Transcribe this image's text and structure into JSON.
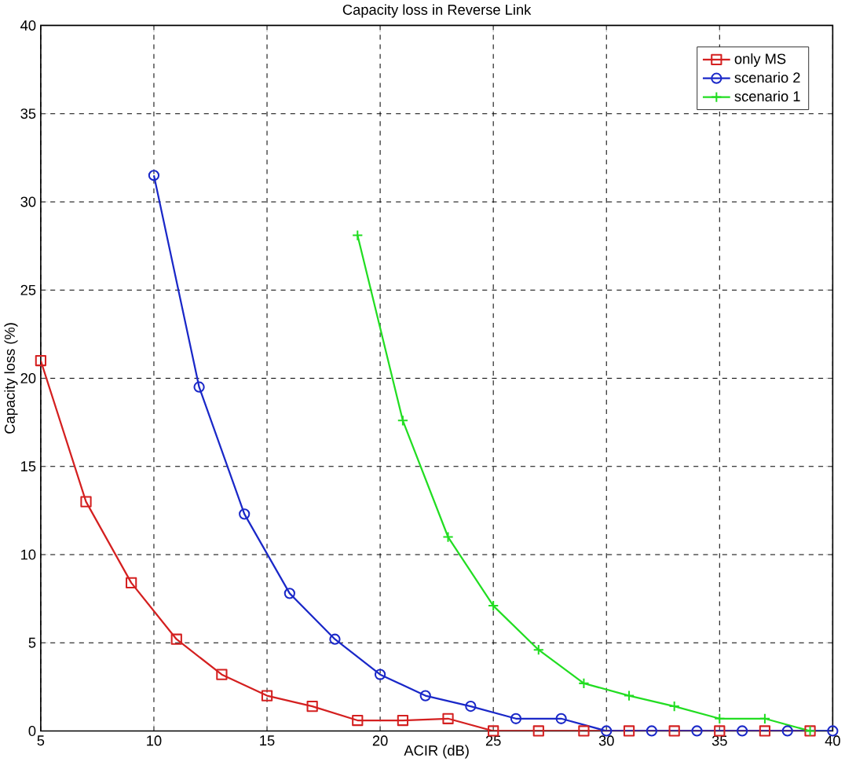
{
  "chart_data": {
    "type": "line",
    "title": "Capacity loss in Reverse Link",
    "xlabel": "ACIR (dB)",
    "ylabel": "Capacity loss (%)",
    "xlim": [
      5,
      40
    ],
    "ylim": [
      0,
      40
    ],
    "xticks": [
      5,
      10,
      15,
      20,
      25,
      30,
      35,
      40
    ],
    "yticks": [
      0,
      5,
      10,
      15,
      20,
      25,
      30,
      35,
      40
    ],
    "grid": true,
    "legend": "top right",
    "line_style": "solid",
    "series": [
      {
        "name": "only MS",
        "color": "#d42020",
        "marker": "square",
        "x": [
          5,
          7,
          9,
          11,
          13,
          15,
          17,
          19,
          21,
          23,
          25,
          27,
          29,
          31,
          33,
          35,
          37,
          39
        ],
        "values": [
          21.0,
          13.0,
          8.4,
          5.2,
          3.2,
          2.0,
          1.4,
          0.6,
          0.6,
          0.7,
          0,
          0,
          0,
          0,
          0,
          0,
          0,
          0
        ]
      },
      {
        "name": "scenario 2",
        "color": "#1a28c8",
        "marker": "circle",
        "x": [
          10,
          12,
          14,
          16,
          18,
          20,
          22,
          24,
          26,
          28,
          30,
          32,
          34,
          36,
          38,
          40
        ],
        "values": [
          31.5,
          19.5,
          12.3,
          7.8,
          5.2,
          3.2,
          2.0,
          1.4,
          0.7,
          0.7,
          0,
          0,
          0,
          0,
          0,
          0
        ]
      },
      {
        "name": "scenario 1",
        "color": "#22dd22",
        "marker": "cross",
        "x": [
          19,
          21,
          23,
          25,
          27,
          29,
          31,
          33,
          35,
          37,
          39
        ],
        "values": [
          28.1,
          17.6,
          11.0,
          7.1,
          4.6,
          2.7,
          2.0,
          1.4,
          0.7,
          0.7,
          0
        ]
      }
    ]
  }
}
